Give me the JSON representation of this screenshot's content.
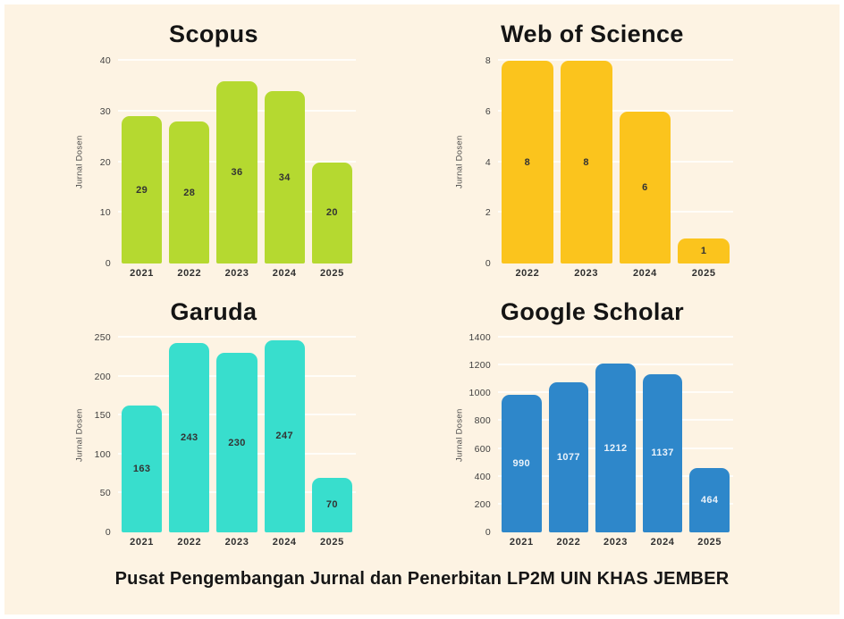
{
  "page": {
    "background_color": "#fdf3e3",
    "frame_color": "#ffffff"
  },
  "footer": {
    "text": "Pusat Pengembangan Jurnal dan Penerbitan LP2M UIN KHAS JEMBER"
  },
  "chart_data": [
    {
      "type": "bar",
      "title": "Scopus",
      "ylabel": "Jurnal Dosen",
      "categories": [
        "2021",
        "2022",
        "2023",
        "2024",
        "2025"
      ],
      "values": [
        29,
        28,
        36,
        34,
        20
      ],
      "ylim": [
        0,
        40
      ],
      "yticks": [
        0,
        10,
        20,
        30,
        40
      ],
      "grid": true,
      "legend": "none",
      "bar_color": "#b5d930",
      "value_label_color": "#333333"
    },
    {
      "type": "bar",
      "title": "Web of Science",
      "ylabel": "Jurnal Dosen",
      "categories": [
        "2022",
        "2023",
        "2024",
        "2025"
      ],
      "values": [
        8,
        8,
        6,
        1
      ],
      "ylim": [
        0,
        8
      ],
      "yticks": [
        0,
        2,
        4,
        6,
        8
      ],
      "grid": true,
      "legend": "none",
      "bar_color": "#fbc41d",
      "value_label_color": "#333333"
    },
    {
      "type": "bar",
      "title": "Garuda",
      "ylabel": "Jurnal Dosen",
      "categories": [
        "2021",
        "2022",
        "2023",
        "2024",
        "2025"
      ],
      "values": [
        163,
        243,
        230,
        247,
        70
      ],
      "ylim": [
        0,
        250
      ],
      "yticks": [
        0,
        50,
        100,
        150,
        200,
        250
      ],
      "grid": true,
      "legend": "none",
      "bar_color": "#38decd",
      "value_label_color": "#333333"
    },
    {
      "type": "bar",
      "title": "Google Scholar",
      "ylabel": "Jurnal Dosen",
      "categories": [
        "2021",
        "2022",
        "2023",
        "2024",
        "2025"
      ],
      "values": [
        990,
        1077,
        1212,
        1137,
        464
      ],
      "ylim": [
        0,
        1400
      ],
      "yticks": [
        0,
        200,
        400,
        600,
        800,
        1000,
        1200,
        1400
      ],
      "grid": true,
      "legend": "none",
      "bar_color": "#2e87ca",
      "value_label_color": "#eaf2fa"
    }
  ]
}
